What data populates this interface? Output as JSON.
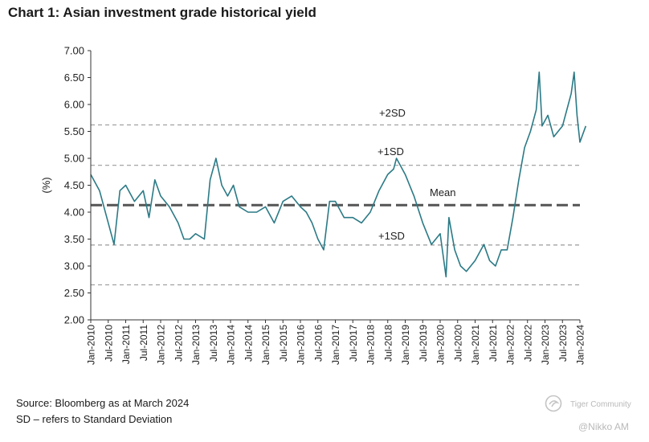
{
  "chart_data": {
    "type": "line",
    "title": "Chart 1: Asian investment grade historical yield",
    "ylabel": "(%)",
    "xlabel": "",
    "ylim": [
      2.0,
      7.0
    ],
    "yticks": [
      "7.00",
      "6.50",
      "6.00",
      "5.50",
      "5.00",
      "4.50",
      "4.00",
      "3.50",
      "3.00",
      "2.50",
      "2.00"
    ],
    "xticks": [
      "Jan-2010",
      "Jul-2010",
      "Jan-2011",
      "Jul-2011",
      "Jan-2012",
      "Jul-2012",
      "Jan-2013",
      "Jul-2013",
      "Jan-2014",
      "Jul-2014",
      "Jan-2015",
      "Jul-2015",
      "Jan-2016",
      "Jul-2016",
      "Jan-2017",
      "Jul-2017",
      "Jan-2018",
      "Jul-2018",
      "Jan-2019",
      "Jul-2019",
      "Jan-2020",
      "Jul-2020",
      "Jan-2021",
      "Jul-2021",
      "Jan-2022",
      "Jul-2022",
      "Jan-2023",
      "Jul-2023",
      "Jan-2024"
    ],
    "grid": false,
    "line_color": "#2b7a86",
    "reference_lines": [
      {
        "label": "+2SD",
        "value": 5.62
      },
      {
        "label": "+1SD",
        "value": 4.87
      },
      {
        "label": "Mean",
        "value": 4.13
      },
      {
        "label": "+1SD",
        "value": 3.39
      },
      {
        "label": "",
        "value": 2.65
      }
    ],
    "series": [
      {
        "x": [
          "Jan-2010",
          "Apr-2010",
          "Jul-2010",
          "Sep-2010",
          "Nov-2010",
          "Jan-2011",
          "Apr-2011",
          "Jul-2011",
          "Sep-2011",
          "Nov-2011",
          "Jan-2012",
          "Apr-2012",
          "Jul-2012",
          "Sep-2012",
          "Nov-2012",
          "Jan-2013",
          "Apr-2013",
          "Jun-2013",
          "Aug-2013",
          "Oct-2013",
          "Dec-2013",
          "Feb-2014",
          "Apr-2014",
          "Jul-2014",
          "Oct-2014",
          "Jan-2015",
          "Apr-2015",
          "Jul-2015",
          "Oct-2015",
          "Jan-2016",
          "Mar-2016",
          "May-2016",
          "Jul-2016",
          "Sep-2016",
          "Nov-2016",
          "Jan-2017",
          "Apr-2017",
          "Jul-2017",
          "Oct-2017",
          "Jan-2018",
          "Apr-2018",
          "Jul-2018",
          "Sep-2018",
          "Oct-2018",
          "Jan-2019",
          "Apr-2019",
          "Jul-2019",
          "Oct-2019",
          "Jan-2020",
          "Mar-2020",
          "Apr-2020",
          "Jun-2020",
          "Aug-2020",
          "Oct-2020",
          "Jan-2021",
          "Apr-2021",
          "Jun-2021",
          "Aug-2021",
          "Oct-2021",
          "Dec-2021",
          "Feb-2022",
          "Apr-2022",
          "Jun-2022",
          "Aug-2022",
          "Oct-2022",
          "Nov-2022",
          "Dec-2022",
          "Feb-2023",
          "Apr-2023",
          "Jul-2023",
          "Sep-2023",
          "Oct-2023",
          "Nov-2023",
          "Dec-2023",
          "Jan-2024",
          "Mar-2024"
        ],
        "values": [
          4.7,
          4.4,
          3.8,
          3.4,
          4.4,
          4.5,
          4.2,
          4.4,
          3.9,
          4.6,
          4.3,
          4.1,
          3.8,
          3.5,
          3.5,
          3.6,
          3.5,
          4.6,
          5.0,
          4.5,
          4.3,
          4.5,
          4.1,
          4.0,
          4.0,
          4.1,
          3.8,
          4.2,
          4.3,
          4.1,
          4.0,
          3.8,
          3.5,
          3.3,
          4.2,
          4.2,
          3.9,
          3.9,
          3.8,
          4.0,
          4.4,
          4.7,
          4.8,
          5.0,
          4.7,
          4.3,
          3.8,
          3.4,
          3.6,
          2.8,
          3.9,
          3.3,
          3.0,
          2.9,
          3.1,
          3.4,
          3.1,
          3.0,
          3.3,
          3.3,
          3.9,
          4.6,
          5.2,
          5.5,
          5.9,
          6.6,
          5.6,
          5.8,
          5.4,
          5.6,
          6.0,
          6.2,
          6.6,
          5.8,
          5.3,
          5.6
        ]
      }
    ]
  },
  "footer": {
    "source": "Source: Bloomberg as at March 2024",
    "note": "SD – refers to Standard Deviation"
  },
  "watermark": {
    "community": "Tiger Community",
    "handle": "@Nikko AM"
  }
}
